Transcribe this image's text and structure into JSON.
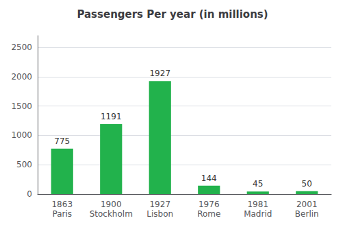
{
  "chart_data": {
    "type": "bar",
    "title": "Passengers Per year (in millions)",
    "categories": [
      "1863\nParis",
      "1900\nStockholm",
      "1927\nLisbon",
      "1976\nRome",
      "1981\nMadrid",
      "2001\nBerlin"
    ],
    "values": [
      775,
      1191,
      1927,
      144,
      45,
      50
    ],
    "color": "#22b24c",
    "ylim": [
      0,
      2700
    ],
    "yticks": [
      0,
      500,
      1000,
      1500,
      2000,
      2500
    ],
    "grid": true,
    "data_labels": true
  }
}
